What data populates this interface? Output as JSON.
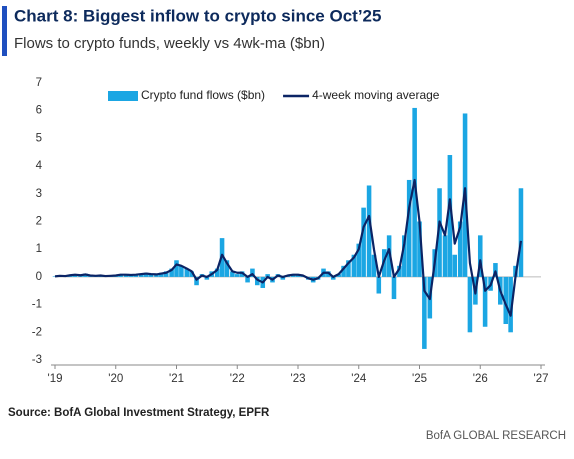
{
  "chart_data": {
    "type": "bar_line",
    "title": "Chart 8: Biggest inflow to crypto since Oct’25",
    "subtitle": "Flows to crypto funds, weekly vs 4wk-ma ($bn)",
    "source": "Source: BofA Global Investment Strategy, EPFR",
    "footer": "BofA GLOBAL RESEARCH",
    "legend": "upper center",
    "grid": false,
    "xlim": [
      2019,
      2027
    ],
    "xticks": [
      {
        "value": 2019,
        "label": "'19"
      },
      {
        "value": 2020,
        "label": "'20"
      },
      {
        "value": 2021,
        "label": "'21"
      },
      {
        "value": 2022,
        "label": "'22"
      },
      {
        "value": 2023,
        "label": "'23"
      },
      {
        "value": 2024,
        "label": "'24"
      },
      {
        "value": 2025,
        "label": "'25"
      },
      {
        "value": 2026,
        "label": "'26"
      },
      {
        "value": 2027,
        "label": "'27"
      }
    ],
    "ylim": [
      -3,
      7
    ],
    "yticks": [
      -3,
      -2,
      -1,
      0,
      1,
      2,
      3,
      4,
      5,
      6,
      7
    ],
    "x": [
      2019.0,
      2019.08,
      2019.17,
      2019.25,
      2019.33,
      2019.42,
      2019.5,
      2019.58,
      2019.67,
      2019.75,
      2019.83,
      2019.92,
      2020.0,
      2020.08,
      2020.17,
      2020.25,
      2020.33,
      2020.42,
      2020.5,
      2020.58,
      2020.67,
      2020.75,
      2020.83,
      2020.92,
      2021.0,
      2021.08,
      2021.17,
      2021.25,
      2021.33,
      2021.42,
      2021.5,
      2021.58,
      2021.67,
      2021.75,
      2021.83,
      2021.92,
      2022.0,
      2022.08,
      2022.17,
      2022.25,
      2022.33,
      2022.42,
      2022.5,
      2022.58,
      2022.67,
      2022.75,
      2022.83,
      2022.92,
      2023.0,
      2023.08,
      2023.17,
      2023.25,
      2023.33,
      2023.42,
      2023.5,
      2023.58,
      2023.67,
      2023.75,
      2023.83,
      2023.92,
      2024.0,
      2024.08,
      2024.17,
      2024.25,
      2024.33,
      2024.42,
      2024.5,
      2024.58,
      2024.67,
      2024.75,
      2024.83,
      2024.92,
      2025.0,
      2025.08,
      2025.17,
      2025.25,
      2025.33,
      2025.42,
      2025.5,
      2025.58,
      2025.67,
      2025.75,
      2025.83,
      2025.92,
      2026.0,
      2026.08,
      2026.17,
      2026.25,
      2026.33,
      2026.42,
      2026.5,
      2026.58,
      2026.67
    ],
    "series": [
      {
        "name": "Crypto fund flows ($bn)",
        "type": "bar",
        "color": "#1ba6e3",
        "values": [
          0.02,
          0.05,
          0.03,
          0.08,
          0.1,
          0.05,
          0.12,
          0.03,
          0.04,
          0.06,
          0.02,
          0.05,
          0.05,
          0.1,
          0.08,
          0.06,
          0.1,
          0.12,
          0.15,
          0.1,
          0.08,
          0.15,
          0.2,
          0.3,
          0.6,
          0.4,
          0.3,
          0.2,
          -0.3,
          0.1,
          -0.1,
          0.2,
          0.3,
          1.4,
          0.6,
          0.2,
          0.1,
          0.2,
          -0.2,
          0.3,
          -0.3,
          -0.4,
          0.1,
          -0.2,
          0.1,
          -0.1,
          0.05,
          0.1,
          0.1,
          0.05,
          -0.1,
          -0.2,
          -0.1,
          0.3,
          0.2,
          -0.1,
          0.1,
          0.4,
          0.6,
          0.8,
          1.2,
          2.5,
          3.3,
          0.8,
          -0.6,
          1.0,
          1.5,
          -0.8,
          0.4,
          1.5,
          3.5,
          6.1,
          2.0,
          -2.6,
          -1.5,
          1.0,
          3.2,
          1.5,
          4.4,
          0.8,
          2.0,
          5.9,
          -2.0,
          -1.0,
          1.5,
          -1.8,
          -0.5,
          0.5,
          -1.0,
          -1.7,
          -2.0,
          0.4,
          3.2
        ]
      },
      {
        "name": "4-week moving average",
        "type": "line",
        "color": "#0b2465",
        "values": [
          0.02,
          0.04,
          0.03,
          0.06,
          0.08,
          0.06,
          0.09,
          0.05,
          0.04,
          0.05,
          0.03,
          0.04,
          0.05,
          0.08,
          0.08,
          0.07,
          0.08,
          0.1,
          0.12,
          0.1,
          0.09,
          0.12,
          0.15,
          0.25,
          0.45,
          0.4,
          0.3,
          0.2,
          -0.1,
          0.05,
          0.0,
          0.1,
          0.25,
          0.8,
          0.5,
          0.2,
          0.15,
          0.15,
          0.0,
          0.1,
          -0.1,
          -0.2,
          0.0,
          -0.1,
          0.05,
          0.0,
          0.05,
          0.08,
          0.08,
          0.05,
          -0.05,
          -0.1,
          -0.05,
          0.15,
          0.15,
          0.0,
          0.1,
          0.3,
          0.5,
          0.7,
          1.0,
          1.8,
          2.2,
          1.0,
          0.0,
          0.6,
          1.0,
          0.0,
          0.3,
          1.2,
          2.5,
          3.5,
          2.0,
          -0.5,
          -0.8,
          0.5,
          2.0,
          1.5,
          2.8,
          1.2,
          1.8,
          3.2,
          0.5,
          -0.6,
          0.6,
          -0.5,
          -0.3,
          0.2,
          -0.5,
          -1.0,
          -1.4,
          0.0,
          1.3
        ]
      }
    ]
  }
}
